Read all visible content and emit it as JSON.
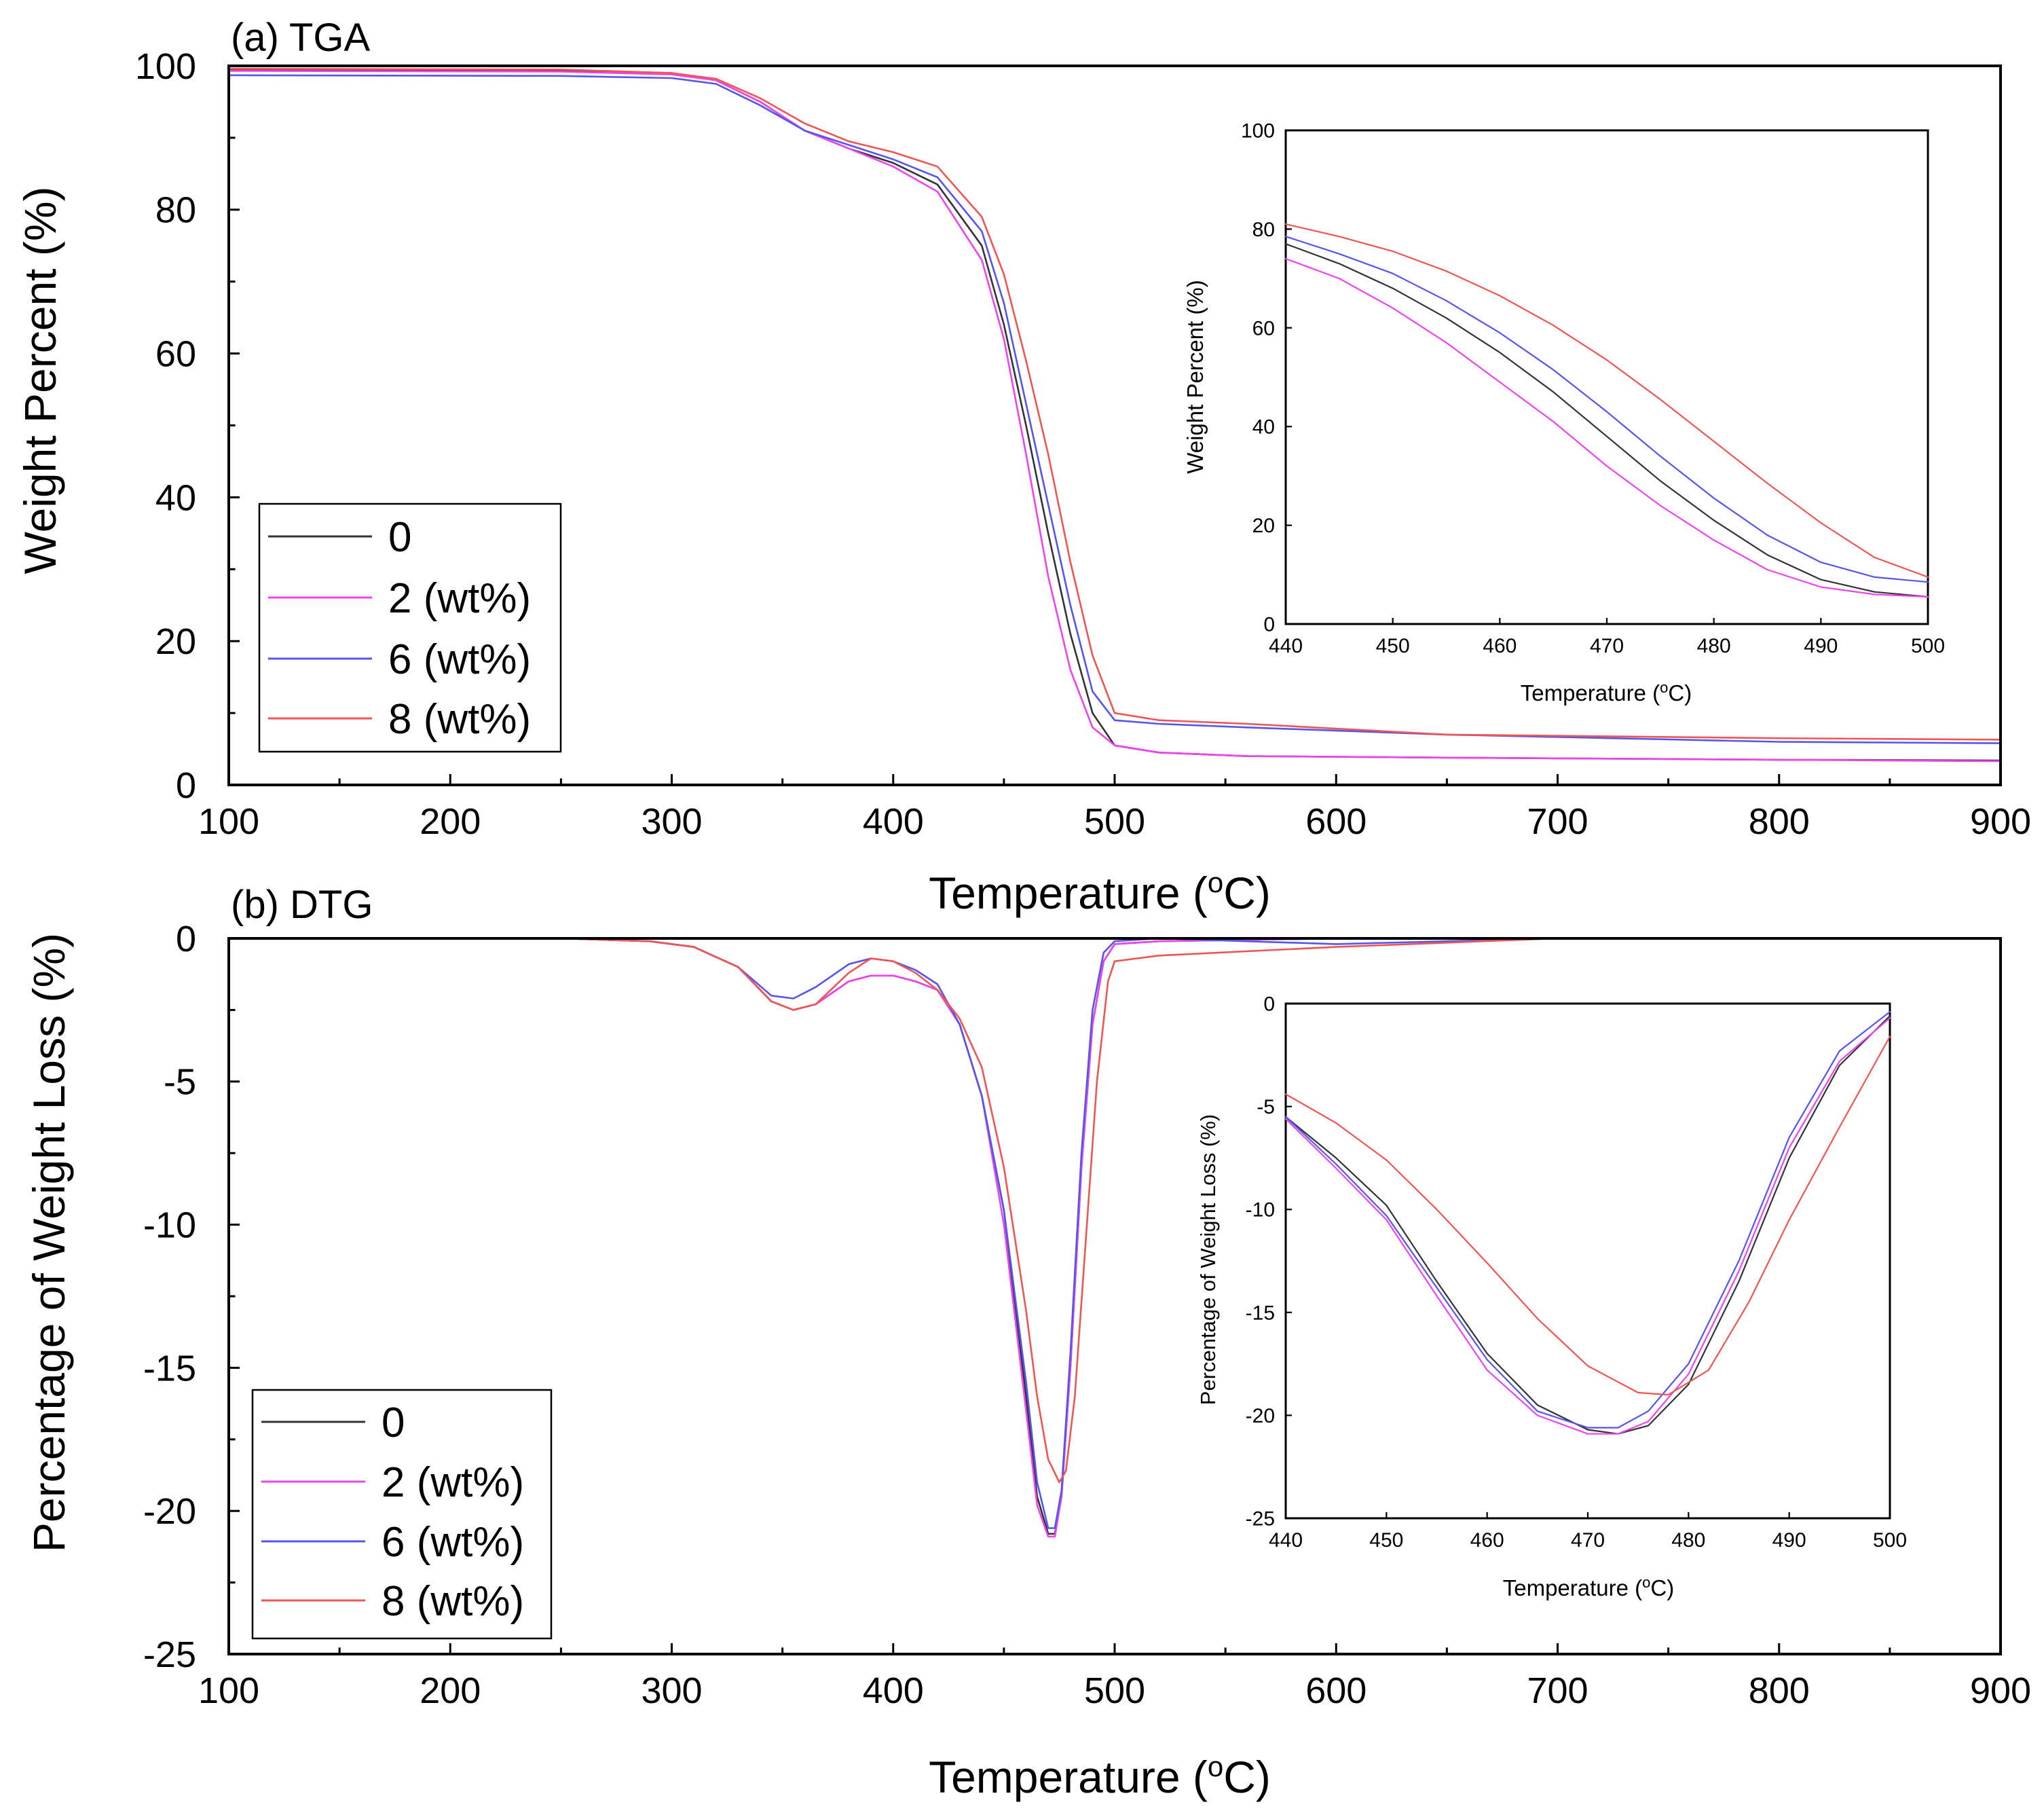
{
  "colors": {
    "0": "#333333",
    "2 (wt%)": "#ee44ee",
    "6 (wt%)": "#5555ee",
    "8 (wt%)": "#ee5555"
  },
  "chart_data": [
    {
      "id": "tga",
      "type": "line",
      "title": "(a) TGA",
      "xlabel": "Temperature (°C)",
      "ylabel": "Weight Percent (%)",
      "xlim": [
        100,
        900
      ],
      "ylim": [
        0,
        100
      ],
      "xticks": [
        100,
        200,
        300,
        400,
        500,
        600,
        700,
        800,
        900
      ],
      "yticks": [
        0,
        20,
        40,
        60,
        80,
        100
      ],
      "legend_position": "bottom-left",
      "series": [
        {
          "name": "0",
          "x": [
            100,
            250,
            300,
            320,
            340,
            360,
            380,
            400,
            420,
            440,
            450,
            460,
            470,
            480,
            490,
            500,
            520,
            560,
            650,
            800,
            900
          ],
          "y": [
            99.5,
            99.4,
            99,
            98,
            95,
            91,
            88.5,
            86.5,
            83.5,
            75,
            64,
            50,
            35,
            21,
            10,
            5.5,
            4.5,
            4,
            3.8,
            3.5,
            3.4
          ]
        },
        {
          "name": "2 (wt%)",
          "x": [
            100,
            250,
            300,
            320,
            340,
            360,
            380,
            400,
            420,
            440,
            450,
            460,
            470,
            480,
            490,
            500,
            520,
            560,
            650,
            800,
            900
          ],
          "y": [
            99.3,
            99.2,
            98.8,
            98,
            95,
            91,
            88.5,
            86,
            82.5,
            73,
            62,
            46,
            29,
            16,
            8,
            5.5,
            4.5,
            4,
            3.8,
            3.5,
            3.3
          ]
        },
        {
          "name": "6 (wt%)",
          "x": [
            100,
            250,
            300,
            320,
            340,
            360,
            380,
            400,
            420,
            440,
            450,
            460,
            470,
            480,
            490,
            500,
            520,
            560,
            650,
            800,
            900
          ],
          "y": [
            98.7,
            98.6,
            98.3,
            97.5,
            94.5,
            91,
            89,
            87,
            84.5,
            77,
            67,
            53,
            39,
            25,
            13,
            9,
            8.5,
            8,
            7,
            6,
            5.8
          ]
        },
        {
          "name": "8 (wt%)",
          "x": [
            100,
            250,
            300,
            320,
            340,
            360,
            380,
            400,
            420,
            440,
            450,
            460,
            470,
            480,
            490,
            500,
            520,
            560,
            650,
            800,
            900
          ],
          "y": [
            99.6,
            99.5,
            99,
            98.2,
            95.5,
            92,
            89.5,
            88,
            86,
            79,
            71,
            59,
            46,
            31,
            18,
            10,
            9,
            8.5,
            7,
            6.5,
            6.3
          ]
        }
      ],
      "inset": {
        "type": "line",
        "xlabel": "Temperature (°C)",
        "ylabel": "Weight Percent (%)",
        "xlim": [
          440,
          500
        ],
        "ylim": [
          0,
          100
        ],
        "xticks": [
          440,
          450,
          460,
          470,
          480,
          490,
          500
        ],
        "yticks": [
          0,
          20,
          40,
          60,
          80,
          100
        ],
        "series": [
          {
            "name": "0",
            "x": [
              440,
              445,
              450,
              455,
              460,
              465,
              470,
              475,
              480,
              485,
              490,
              495,
              500
            ],
            "y": [
              77,
              73,
              68,
              62,
              55,
              47,
              38,
              29,
              21,
              14,
              9,
              6.5,
              5.5
            ]
          },
          {
            "name": "2 (wt%)",
            "x": [
              440,
              445,
              450,
              455,
              460,
              465,
              470,
              475,
              480,
              485,
              490,
              495,
              500
            ],
            "y": [
              74,
              70,
              64,
              57,
              49,
              41,
              32,
              24,
              17,
              11,
              7.5,
              6,
              5.5
            ]
          },
          {
            "name": "6 (wt%)",
            "x": [
              440,
              445,
              450,
              455,
              460,
              465,
              470,
              475,
              480,
              485,
              490,
              495,
              500
            ],
            "y": [
              78.5,
              75,
              71,
              65.5,
              59,
              51.5,
              43,
              34,
              25.5,
              18,
              12.5,
              9.5,
              8.5
            ]
          },
          {
            "name": "8 (wt%)",
            "x": [
              440,
              445,
              450,
              455,
              460,
              465,
              470,
              475,
              480,
              485,
              490,
              495,
              500
            ],
            "y": [
              81,
              78.5,
              75.5,
              71.5,
              66.5,
              60.5,
              53.5,
              45.5,
              37,
              28.5,
              20.5,
              13.5,
              9.5
            ]
          }
        ]
      }
    },
    {
      "id": "dtg",
      "type": "line",
      "title": "(b) DTG",
      "xlabel": "Temperature (°C)",
      "ylabel": "Percentage of Weight Loss (%)",
      "xlim": [
        100,
        900
      ],
      "ylim": [
        -25,
        0
      ],
      "xticks": [
        100,
        200,
        300,
        400,
        500,
        600,
        700,
        800,
        900
      ],
      "yticks": [
        0,
        -5,
        -10,
        -15,
        -20,
        -25
      ],
      "legend_position": "bottom-left",
      "series": [
        {
          "name": "0",
          "x": [
            100,
            250,
            290,
            310,
            330,
            345,
            355,
            365,
            380,
            390,
            400,
            410,
            420,
            430,
            440,
            450,
            460,
            465,
            470,
            473,
            476,
            480,
            485,
            490,
            495,
            500,
            520,
            600,
            700,
            900
          ],
          "y": [
            0,
            0,
            -0.1,
            -0.3,
            -1,
            -2.2,
            -2.5,
            -2.3,
            -1.5,
            -1.3,
            -1.3,
            -1.5,
            -1.8,
            -3,
            -5.5,
            -9.5,
            -16,
            -19.5,
            -20.8,
            -20.8,
            -19.5,
            -15,
            -8,
            -3,
            -0.8,
            -0.2,
            -0.1,
            0,
            0,
            0
          ]
        },
        {
          "name": "2 (wt%)",
          "x": [
            100,
            250,
            290,
            310,
            330,
            345,
            355,
            365,
            380,
            390,
            400,
            410,
            420,
            430,
            440,
            450,
            460,
            465,
            470,
            473,
            476,
            480,
            485,
            490,
            495,
            500,
            520,
            600,
            700,
            900
          ],
          "y": [
            0,
            0,
            -0.1,
            -0.3,
            -1,
            -2.2,
            -2.5,
            -2.3,
            -1.5,
            -1.3,
            -1.3,
            -1.5,
            -1.8,
            -3,
            -5.5,
            -10,
            -16.5,
            -19.8,
            -20.9,
            -20.9,
            -19.5,
            -15,
            -8,
            -3,
            -0.8,
            -0.2,
            -0.1,
            0,
            0,
            0
          ]
        },
        {
          "name": "6 (wt%)",
          "x": [
            100,
            250,
            290,
            310,
            330,
            345,
            355,
            365,
            380,
            390,
            400,
            410,
            420,
            430,
            440,
            450,
            460,
            465,
            470,
            473,
            476,
            480,
            485,
            490,
            495,
            500,
            520,
            600,
            700,
            900
          ],
          "y": [
            0,
            0,
            -0.1,
            -0.3,
            -1,
            -2,
            -2.1,
            -1.7,
            -0.9,
            -0.7,
            -0.8,
            -1.1,
            -1.6,
            -3,
            -5.5,
            -9.5,
            -15.5,
            -19,
            -20.6,
            -20.6,
            -19.3,
            -14.5,
            -7.5,
            -2.5,
            -0.5,
            -0.1,
            0,
            -0.2,
            0,
            0
          ]
        },
        {
          "name": "8 (wt%)",
          "x": [
            100,
            250,
            290,
            310,
            330,
            345,
            355,
            365,
            380,
            390,
            400,
            410,
            420,
            430,
            440,
            450,
            460,
            465,
            470,
            475,
            478,
            482,
            487,
            492,
            497,
            500,
            520,
            600,
            700,
            900
          ],
          "y": [
            0,
            0,
            -0.1,
            -0.3,
            -1,
            -2.2,
            -2.5,
            -2.3,
            -1.2,
            -0.7,
            -0.8,
            -1.2,
            -1.8,
            -2.8,
            -4.5,
            -8,
            -13,
            -16,
            -18.2,
            -19,
            -18.6,
            -16,
            -10.5,
            -5,
            -1.5,
            -0.8,
            -0.6,
            -0.3,
            0,
            0
          ]
        }
      ],
      "inset": {
        "type": "line",
        "xlabel": "Temperature (°C)",
        "ylabel": "Percentage of Weight Loss (%)",
        "xlim": [
          440,
          500
        ],
        "ylim": [
          -25,
          0
        ],
        "xticks": [
          440,
          450,
          460,
          470,
          480,
          490,
          500
        ],
        "yticks": [
          0,
          -5,
          -10,
          -15,
          -20,
          -25
        ],
        "series": [
          {
            "name": "0",
            "x": [
              440,
              445,
              450,
              455,
              460,
              465,
              470,
              473,
              476,
              480,
              485,
              490,
              495,
              500
            ],
            "y": [
              -5.5,
              -7.5,
              -9.8,
              -13.5,
              -17,
              -19.5,
              -20.7,
              -20.9,
              -20.5,
              -18.5,
              -13.5,
              -7.5,
              -3,
              -0.6
            ]
          },
          {
            "name": "2 (wt%)",
            "x": [
              440,
              445,
              450,
              455,
              460,
              465,
              470,
              473,
              476,
              480,
              485,
              490,
              495,
              500
            ],
            "y": [
              -5.6,
              -8,
              -10.5,
              -14.2,
              -17.8,
              -20,
              -20.9,
              -20.9,
              -20.3,
              -18,
              -13,
              -7,
              -2.8,
              -0.7
            ]
          },
          {
            "name": "6 (wt%)",
            "x": [
              440,
              445,
              450,
              455,
              460,
              465,
              470,
              473,
              476,
              480,
              485,
              490,
              495,
              500
            ],
            "y": [
              -5.5,
              -7.8,
              -10.3,
              -13.8,
              -17.3,
              -19.8,
              -20.6,
              -20.6,
              -19.8,
              -17.5,
              -12.5,
              -6.5,
              -2.3,
              -0.4
            ]
          },
          {
            "name": "8 (wt%)",
            "x": [
              440,
              445,
              450,
              455,
              460,
              465,
              470,
              475,
              478,
              482,
              486,
              490,
              495,
              500
            ],
            "y": [
              -4.4,
              -5.8,
              -7.6,
              -10,
              -12.6,
              -15.3,
              -17.6,
              -18.9,
              -19,
              -17.8,
              -14.5,
              -10.5,
              -6,
              -1.6
            ]
          }
        ]
      }
    }
  ]
}
